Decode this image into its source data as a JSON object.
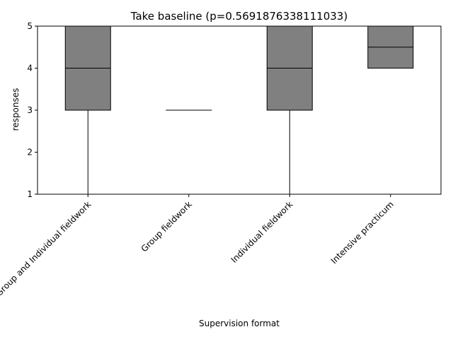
{
  "chart_data": {
    "type": "box",
    "title": "Take baseline (p=0.5691876338111033)",
    "xlabel": "Supervision format",
    "ylabel": "responses",
    "ylim": [
      1,
      5
    ],
    "yticks": [
      "1",
      "2",
      "3",
      "4",
      "5"
    ],
    "grid": false,
    "categories": [
      "Group and Individual fieldwork",
      "Group fieldwork",
      "Individual fieldwork",
      "Intensive practicum"
    ],
    "boxes": [
      {
        "whisker_low": 1,
        "q1": 3,
        "median": 4,
        "q3": 5,
        "whisker_high": 5
      },
      {
        "whisker_low": 3,
        "q1": 3,
        "median": 3,
        "q3": 3,
        "whisker_high": 3
      },
      {
        "whisker_low": 1,
        "q1": 3,
        "median": 4,
        "q3": 5,
        "whisker_high": 5
      },
      {
        "whisker_low": 4,
        "q1": 4,
        "median": 4.5,
        "q3": 5,
        "whisker_high": 5
      }
    ],
    "box_color": "#808080",
    "edge_color": "#000000"
  }
}
